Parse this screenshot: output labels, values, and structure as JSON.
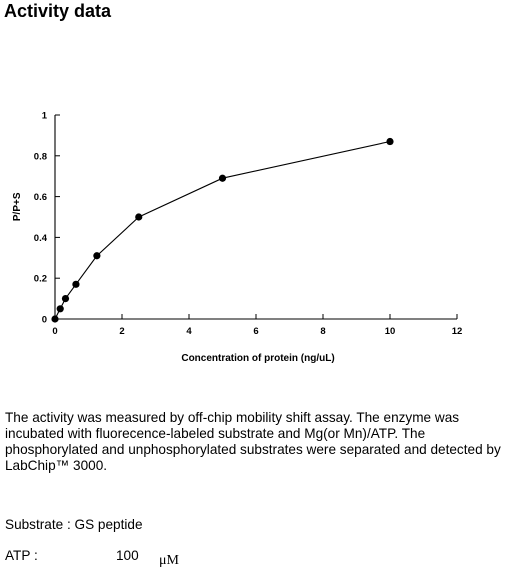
{
  "page": {
    "title": "Activity data",
    "description": "The activity was measured by off-chip mobility shift assay. The enzyme was incubated with fluorecence-labeled  substrate and Mg(or Mn)/ATP. The phosphorylated and unphosphorylated substrates were separated and detected by LabChip™ 3000.",
    "substrate": "Substrate : GS peptide",
    "atp_label": "ATP :",
    "atp_value": "100",
    "atp_unit": "μM"
  },
  "chart_data": {
    "type": "line",
    "xlabel": "Concentration of protein (ng/uL)",
    "ylabel": "P/P+S",
    "xlim": [
      0,
      12
    ],
    "ylim": [
      0,
      1
    ],
    "x_ticks": [
      0,
      2,
      4,
      6,
      8,
      10,
      12
    ],
    "y_ticks": [
      0,
      0.2,
      0.4,
      0.6,
      0.8,
      1
    ],
    "x_tick_labels": [
      "0",
      "2",
      "4",
      "6",
      "8",
      "10",
      "12"
    ],
    "y_tick_labels": [
      "0",
      "0.2",
      "0.4",
      "0.6",
      "0.8",
      "1"
    ],
    "grid": false,
    "series": [
      {
        "x": [
          0,
          0.156,
          0.313,
          0.625,
          1.25,
          2.5,
          5,
          10
        ],
        "y": [
          0,
          0.05,
          0.1,
          0.17,
          0.31,
          0.5,
          0.69,
          0.87
        ]
      }
    ]
  }
}
